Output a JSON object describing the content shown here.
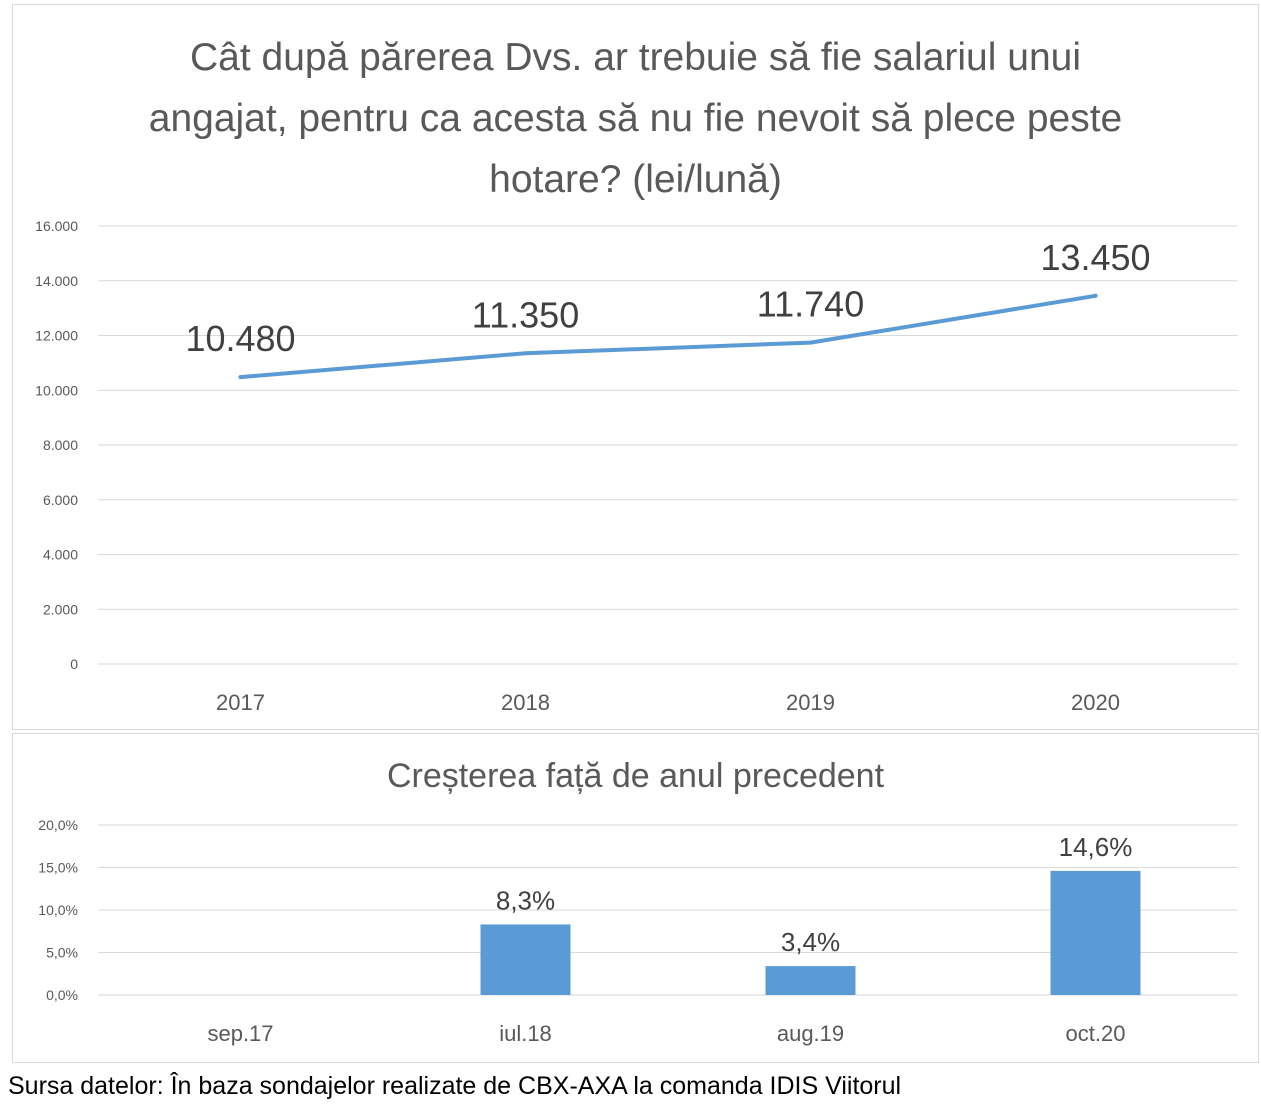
{
  "chart_data": [
    {
      "type": "line",
      "title": "Cât după părerea Dvs. ar trebuie să fie salariul unui angajat, pentru ca acesta să nu fie nevoit să plece peste hotare? (lei/lună)",
      "categories": [
        "2017",
        "2018",
        "2019",
        "2020"
      ],
      "values": [
        10480,
        11350,
        11740,
        13450
      ],
      "data_labels": [
        "10.480",
        "11.350",
        "11.740",
        "13.450"
      ],
      "ylim": [
        0,
        16000
      ],
      "y_ticks": [
        "0",
        "2.000",
        "4.000",
        "6.000",
        "8.000",
        "10.000",
        "12.000",
        "14.000",
        "16.000"
      ],
      "grid": true,
      "series_color": "#5b9bd5"
    },
    {
      "type": "bar",
      "title": "Creșterea față de anul precedent",
      "categories": [
        "sep.17",
        "iul.18",
        "aug.19",
        "oct.20"
      ],
      "values": [
        null,
        8.3,
        3.4,
        14.6
      ],
      "data_labels": [
        "",
        "8,3%",
        "3,4%",
        "14,6%"
      ],
      "ylim": [
        0,
        20
      ],
      "y_ticks": [
        "0,0%",
        "5,0%",
        "10,0%",
        "15,0%",
        "20,0%"
      ],
      "grid": true,
      "series_color": "#5b9bd5"
    }
  ],
  "source_note": "Sursa datelor: În baza sondajelor realizate de CBX-AXA la comanda IDIS Viitorul"
}
